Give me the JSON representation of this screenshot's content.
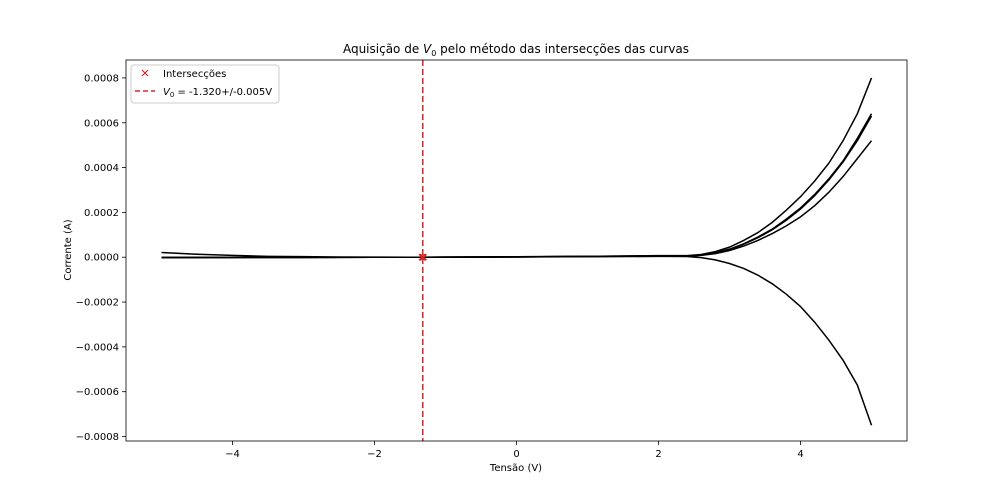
{
  "chart_data": {
    "type": "line",
    "title_prefix": "Aquisição de ",
    "title_var": "V",
    "title_sub": "0",
    "title_suffix": " pelo método das intersecções das curvas",
    "xlabel": "Tensão (V)",
    "ylabel": "Corrente (A)",
    "xlim": [
      -5.5,
      5.5
    ],
    "ylim": [
      -0.00082,
      0.00088
    ],
    "xticks": [
      -4,
      -2,
      0,
      2,
      4
    ],
    "xtick_labels": [
      "−4",
      "−2",
      "0",
      "2",
      "4"
    ],
    "yticks": [
      -0.0008,
      -0.0006,
      -0.0004,
      -0.0002,
      0.0,
      0.0002,
      0.0004,
      0.0006,
      0.0008
    ],
    "ytick_labels": [
      "−0.0008",
      "−0.0006",
      "−0.0004",
      "−0.0002",
      "0.0000",
      "0.0002",
      "0.0004",
      "0.0006",
      "0.0008"
    ],
    "grid": false,
    "legend_position": "top-left",
    "legend": {
      "intersections_label": "Intersecções",
      "v0_var": "V",
      "v0_sub": "0",
      "v0_text": " = -1.320+/-0.005V"
    },
    "vline_x": -1.32,
    "intersection_points": [
      {
        "x": -1.32,
        "y": 0.0
      },
      {
        "x": -1.33,
        "y": 0.0
      },
      {
        "x": -1.31,
        "y": 0.0
      },
      {
        "x": -1.32,
        "y": 5e-07
      }
    ],
    "series": [
      {
        "x": [
          -5,
          -4.5,
          -4,
          -3.5,
          -3,
          -2.5,
          -2,
          -1.5,
          -1.32,
          -1,
          -0.5,
          0,
          0.5,
          1,
          1.5,
          2,
          2.4,
          2.6,
          2.8,
          3,
          3.2,
          3.4,
          3.6,
          3.8,
          4,
          4.2,
          4.4,
          4.6,
          4.8,
          5
        ],
        "y": [
          2.1e-05,
          1.3e-05,
          8e-06,
          4e-06,
          2.5e-06,
          1.2e-06,
          5e-07,
          1e-07,
          0.0,
          -2e-07,
          5e-07,
          1e-06,
          2.5e-06,
          4e-06,
          5.5e-06,
          7e-06,
          7e-06,
          1.2e-05,
          2.5e-05,
          4.5e-05,
          7.5e-05,
          0.00011,
          0.000155,
          0.00021,
          0.00027,
          0.00034,
          0.00042,
          0.00052,
          0.00064,
          0.0008
        ]
      },
      {
        "x": [
          -5,
          -4,
          -3,
          -2,
          -1.32,
          -1,
          0,
          1,
          2,
          2.4,
          2.6,
          2.8,
          3,
          3.2,
          3.4,
          3.6,
          3.8,
          4,
          4.2,
          4.4,
          4.6,
          4.8,
          5
        ],
        "y": [
          -1.5e-06,
          -1e-06,
          -6e-07,
          -2e-07,
          0.0,
          5e-07,
          2e-06,
          4e-06,
          6e-06,
          6e-06,
          1e-05,
          2e-05,
          3.6e-05,
          6e-05,
          9e-05,
          0.000125,
          0.00017,
          0.00022,
          0.00028,
          0.00035,
          0.00043,
          0.00053,
          0.00064
        ]
      },
      {
        "x": [
          -5,
          -4,
          -3,
          -2,
          -1.32,
          -1,
          0,
          1,
          2,
          2.4,
          2.6,
          2.8,
          3,
          3.2,
          3.4,
          3.6,
          3.8,
          4,
          4.2,
          4.4,
          4.6,
          4.8,
          5
        ],
        "y": [
          -1e-06,
          -8e-07,
          -5e-07,
          -2e-07,
          0.0,
          5e-07,
          2e-06,
          3.5e-06,
          5.5e-06,
          5.5e-06,
          9.5e-06,
          1.9e-05,
          3.5e-05,
          5.8e-05,
          8.7e-05,
          0.000122,
          0.000165,
          0.000215,
          0.000275,
          0.000345,
          0.000425,
          0.00052,
          0.00063
        ]
      },
      {
        "x": [
          -5,
          -4,
          -3,
          -2,
          -1.32,
          -1,
          0,
          1,
          2,
          2.4,
          2.6,
          2.8,
          3,
          3.2,
          3.4,
          3.6,
          3.8,
          4,
          4.2,
          4.4,
          4.6,
          4.8,
          5
        ],
        "y": [
          -1e-06,
          -8e-07,
          -5e-07,
          -2e-07,
          0.0,
          4e-07,
          1.5e-06,
          3e-06,
          4.5e-06,
          4.5e-06,
          8e-06,
          1.6e-05,
          3e-05,
          5e-05,
          7.5e-05,
          0.000105,
          0.00014,
          0.00018,
          0.00023,
          0.00029,
          0.00036,
          0.00044,
          0.00052
        ]
      },
      {
        "x": [
          -5,
          -4,
          -3,
          -2,
          -1.32,
          -1,
          0,
          1,
          2,
          2.4,
          2.6,
          2.8,
          3,
          3.2,
          3.4,
          3.6,
          3.8,
          4,
          4.2,
          4.4,
          4.6,
          4.8,
          5
        ],
        "y": [
          -2e-06,
          -1.5e-06,
          -1e-06,
          -4e-07,
          0.0,
          3e-07,
          1e-06,
          2.5e-06,
          4e-06,
          3e-06,
          -2e-06,
          -1.2e-05,
          -2.8e-05,
          -5e-05,
          -8e-05,
          -0.000118,
          -0.000165,
          -0.00022,
          -0.00029,
          -0.00037,
          -0.00046,
          -0.00057,
          -0.00075
        ]
      }
    ]
  }
}
